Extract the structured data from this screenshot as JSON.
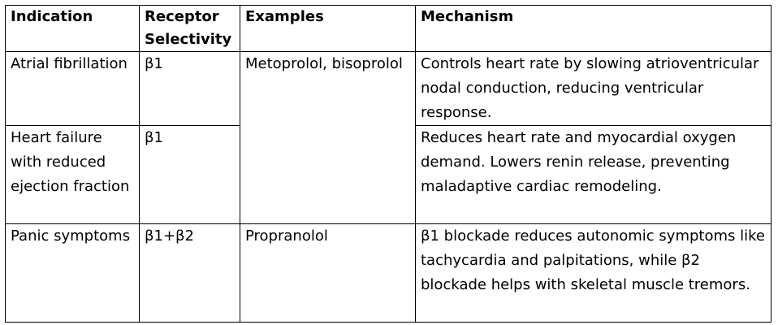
{
  "table": {
    "headers": [
      "Indication",
      "Receptor Selectivity",
      "Examples",
      "Mechanism"
    ],
    "rows": [
      {
        "indication": "Atrial fibrillation",
        "selectivity": "β1",
        "examples": "Metoprolol, bisoprolol",
        "mechanism": "Controls heart rate by slowing atrioventricular nodal conduction, reducing ventricular response."
      },
      {
        "indication": "Heart failure with reduced ejection fraction",
        "selectivity": "β1",
        "examples": "",
        "mechanism": "Reduces heart rate and myocardial oxygen demand. Lowers renin release, preventing maladaptive cardiac remodeling."
      },
      {
        "indication": "Panic symptoms",
        "selectivity": "β1+β2",
        "examples": "Propranolol",
        "mechanism": "β1 blockade reduces autonomic symptoms like tachycardia and palpitations, while β2 blockade helps with skeletal muscle tremors."
      }
    ]
  }
}
